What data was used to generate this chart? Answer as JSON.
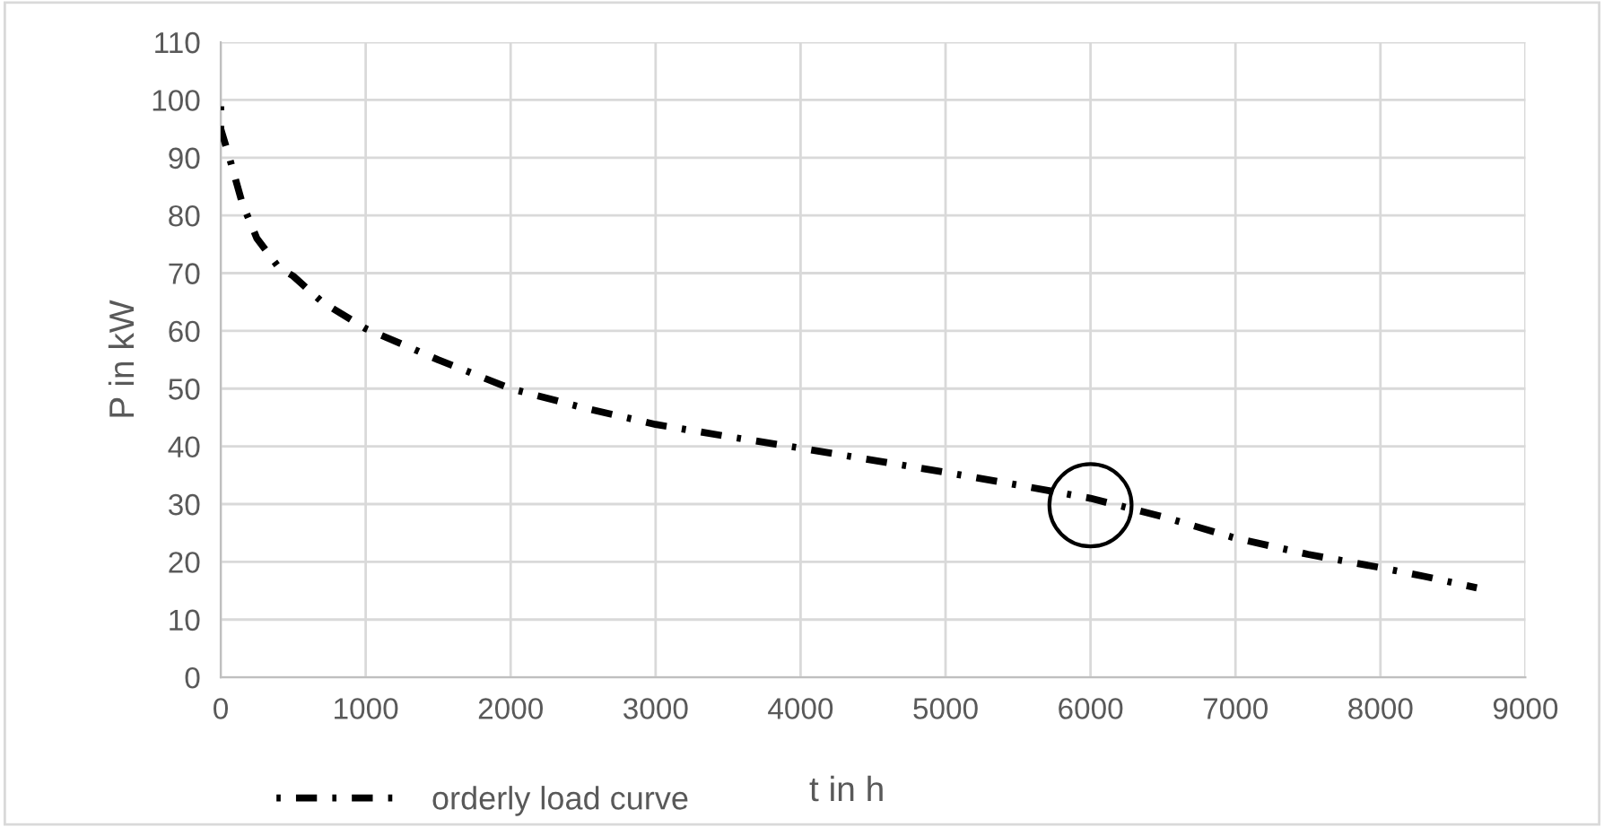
{
  "chart_data": {
    "type": "line",
    "xlabel": "t in h",
    "ylabel": "P in kW",
    "xlim": [
      0,
      9000
    ],
    "xticks": [
      0,
      1000,
      2000,
      3000,
      4000,
      5000,
      6000,
      7000,
      8000,
      9000
    ],
    "ylim": [
      0,
      110
    ],
    "yticks": [
      0,
      10,
      20,
      30,
      40,
      50,
      60,
      70,
      80,
      90,
      100,
      110
    ],
    "grid": true,
    "legend": "bottom left",
    "line_style": "dashdot",
    "series": [
      {
        "name": "orderly load curve",
        "color": "#000000",
        "x": [
          0,
          0,
          60,
          150,
          250,
          400,
          500,
          700,
          1000,
          1500,
          2000,
          2500,
          3000,
          3500,
          4000,
          4500,
          5000,
          5500,
          6000,
          6500,
          7000,
          7500,
          8000,
          8300,
          8665
        ],
        "values": [
          99,
          95,
          90,
          82,
          76,
          71,
          69.5,
          65,
          60.4,
          55,
          50,
          46.7,
          43.8,
          41.7,
          39.7,
          37.6,
          35.5,
          33.3,
          31,
          27.8,
          24.1,
          21.3,
          19,
          17.5,
          15.5
        ]
      },
      {
        "type": "scatter",
        "color": "#000000",
        "marker": "circle",
        "x": [
          6000
        ],
        "values": [
          29.8
        ]
      }
    ]
  }
}
